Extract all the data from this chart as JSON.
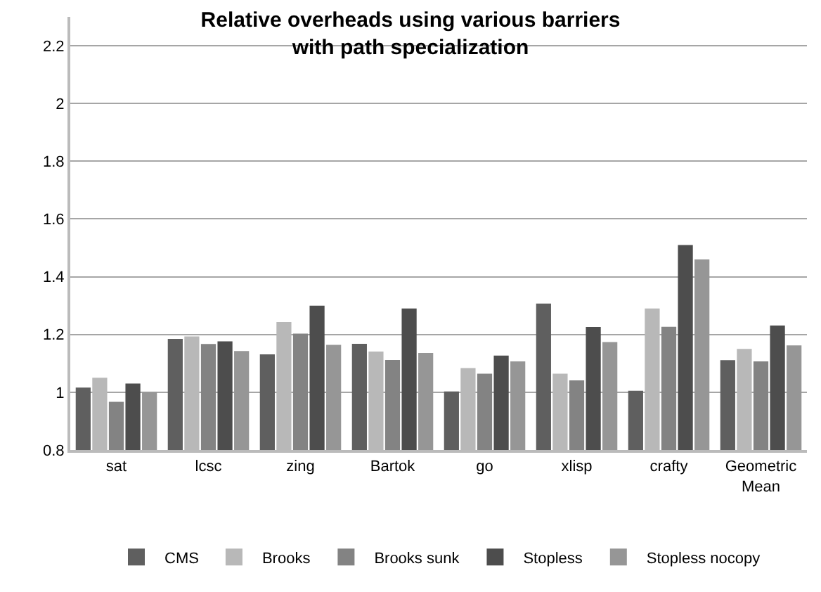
{
  "chart_data": {
    "type": "bar",
    "title": "Relative overheads using various barriers\nwith path specialization",
    "categories": [
      "sat",
      "lcsc",
      "zing",
      "Bartok",
      "go",
      "xlisp",
      "crafty",
      "Geometric Mean"
    ],
    "series": [
      {
        "name": "CMS",
        "color": "#5f5f5f",
        "values": [
          1.016,
          1.185,
          1.131,
          1.168,
          1.003,
          1.307,
          1.005,
          1.111
        ]
      },
      {
        "name": "Brooks",
        "color": "#b8b8b8",
        "values": [
          1.05,
          1.193,
          1.243,
          1.141,
          1.084,
          1.064,
          1.29,
          1.15
        ]
      },
      {
        "name": "Brooks sunk",
        "color": "#838383",
        "values": [
          0.967,
          1.167,
          1.203,
          1.112,
          1.064,
          1.041,
          1.227,
          1.107
        ]
      },
      {
        "name": "Stopless",
        "color": "#4d4d4d",
        "values": [
          1.03,
          1.176,
          1.3,
          1.29,
          1.127,
          1.226,
          1.51,
          1.231
        ]
      },
      {
        "name": "Stopless nocopy",
        "color": "#969696",
        "values": [
          1.001,
          1.143,
          1.164,
          1.136,
          1.107,
          1.174,
          1.46,
          1.162
        ]
      }
    ],
    "ylim": [
      0.8,
      2.3
    ],
    "yticks": [
      0.8,
      1,
      1.2,
      1.4,
      1.6,
      1.8,
      2,
      2.2
    ],
    "grid": "y",
    "legend": "bottom"
  }
}
